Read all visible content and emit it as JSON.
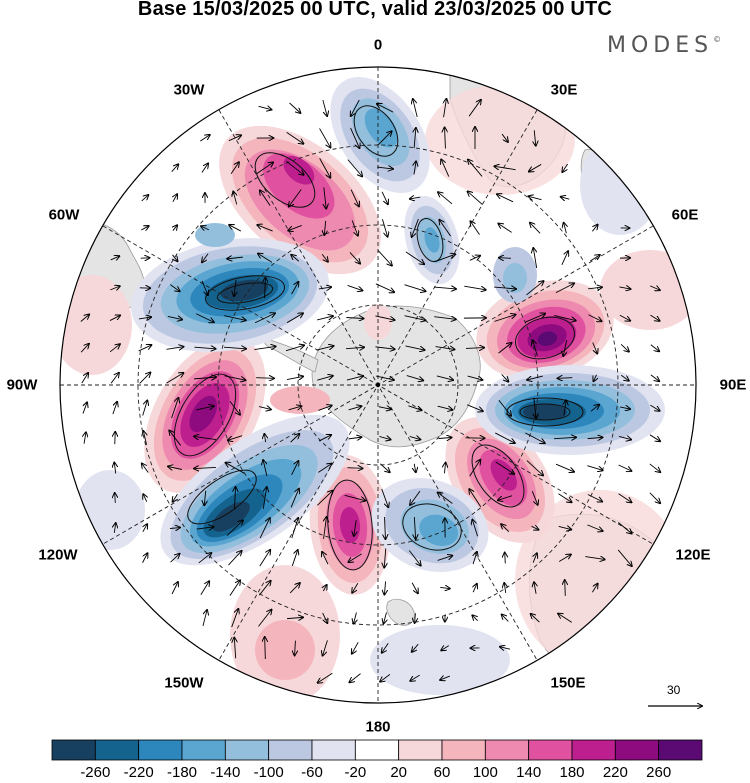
{
  "title": "Base 15/03/2025 00 UTC, valid 23/03/2025 00 UTC",
  "brand": {
    "name": "MODES",
    "mark": "©"
  },
  "longitude_labels": {
    "lon_0": "0",
    "lon_30e": "30E",
    "lon_60e": "60E",
    "lon_90e": "90E",
    "lon_120e": "120E",
    "lon_150e": "150E",
    "lon_180": "180",
    "lon_150w": "150W",
    "lon_120w": "120W",
    "lon_90w": "90W",
    "lon_60w": "60W",
    "lon_30w": "30W"
  },
  "vector_reference": {
    "value": "30"
  },
  "colorbar": {
    "tick_labels": [
      "-260",
      "-220",
      "-180",
      "-140",
      "-100",
      "-60",
      "-20",
      "20",
      "60",
      "100",
      "140",
      "180",
      "220",
      "260"
    ],
    "colors": [
      "#173f5f",
      "#14638f",
      "#2d86bc",
      "#5aa6d1",
      "#93bfdd",
      "#bcc8e2",
      "#e1e3f1",
      "#ffffff",
      "#f7d8da",
      "#f4b5bd",
      "#ee8ab0",
      "#e0529f",
      "#bd1f8e",
      "#8e0a7f",
      "#5b0a73"
    ]
  }
}
